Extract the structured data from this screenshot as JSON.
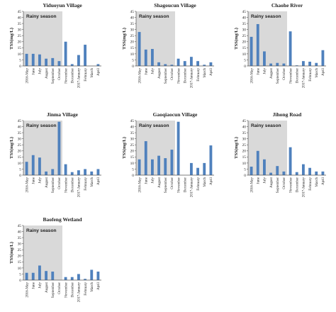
{
  "colors": {
    "bar": "#4f81bd",
    "rainy_band": "#d9d9d9",
    "axis": "#555555"
  },
  "shared": {
    "ylabel": "TSS(mg/L)",
    "season_label": "Rainy season",
    "categories": [
      "2016-May",
      "June",
      "July",
      "August",
      "September",
      "October",
      "November",
      "December",
      "2017-January",
      "February",
      "March",
      "April"
    ],
    "ylim": [
      0,
      45
    ],
    "yticks": [
      0,
      5,
      10,
      15,
      20,
      25,
      30,
      35,
      40,
      45
    ],
    "rainy_categories": [
      "2016-May",
      "June",
      "July",
      "August",
      "September",
      "October"
    ]
  },
  "chart_data": [
    {
      "type": "bar",
      "title": "Yiduoyun Village",
      "values": [
        10,
        10,
        9.5,
        6,
        6.5,
        4,
        20,
        1.5,
        9,
        17.5,
        0,
        1.5
      ]
    },
    {
      "type": "bar",
      "title": "Shagoucun Village",
      "values": [
        28,
        13.5,
        14,
        3,
        1.5,
        1,
        6,
        4,
        7.5,
        4,
        1,
        3
      ]
    },
    {
      "type": "bar",
      "title": "Chaohe River",
      "values": [
        24,
        34.5,
        12,
        2,
        2.5,
        2,
        28.5,
        0.5,
        4,
        3.5,
        2.5,
        13
      ]
    },
    {
      "type": "bar",
      "title": "Jinma Village",
      "values": [
        11,
        16.5,
        14.5,
        3,
        5,
        44,
        9,
        2.5,
        4,
        5,
        3,
        5
      ]
    },
    {
      "type": "bar",
      "title": "Gaoqiaocun Village",
      "values": [
        13,
        28,
        13,
        16,
        14,
        21,
        44,
        0,
        10,
        6,
        10,
        24.5
      ]
    },
    {
      "type": "bar",
      "title": "Jihong Road",
      "values": [
        7,
        20,
        13,
        2,
        7.5,
        3,
        23,
        2.5,
        9,
        6,
        3,
        3
      ]
    },
    {
      "type": "bar",
      "title": "Baofeng Wetland",
      "values": [
        6,
        6,
        12,
        7.5,
        7,
        0,
        2.5,
        2.5,
        5,
        1,
        8.5,
        7
      ]
    }
  ]
}
